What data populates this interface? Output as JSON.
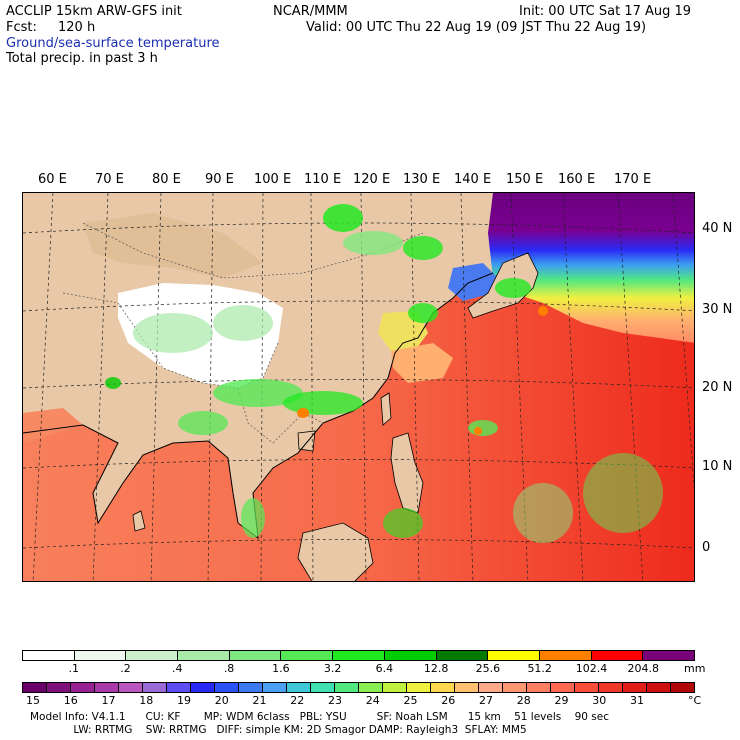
{
  "header": {
    "model": "ACCLIP 15km ARW-GFS init",
    "org": "NCAR/MMM",
    "init": "Init: 00 UTC Sat 17 Aug 19",
    "fcst_label": "Fcst:",
    "fcst_value": "120 h",
    "valid": "Valid: 00 UTC Thu 22 Aug 19 (09 JST Thu 22 Aug 19)",
    "field1": "Ground/sea-surface temperature",
    "field2": "Total precip. in past 3 h"
  },
  "map": {
    "lon_labels": [
      "60 E",
      "70 E",
      "80 E",
      "90 E",
      "100 E",
      "110 E",
      "120 E",
      "130 E",
      "140 E",
      "150 E",
      "160 E",
      "170 E"
    ],
    "lat_labels": [
      "40 N",
      "30 N",
      "20 N",
      "10 N",
      "0"
    ]
  },
  "precip_scale": {
    "labels": [
      ".1",
      ".2",
      ".4",
      ".8",
      "1.6",
      "3.2",
      "6.4",
      "12.8",
      "25.6",
      "51.2",
      "102.4",
      "204.8"
    ],
    "unit": "mm",
    "colors": [
      "#ffffff",
      "#eef8ee",
      "#ccf0cc",
      "#a8eaa8",
      "#80e880",
      "#56e856",
      "#22e822",
      "#00cc00",
      "#007a00",
      "#ffff00",
      "#ff8000",
      "#ff0000",
      "#7a007a"
    ]
  },
  "sst_scale": {
    "labels": [
      "15",
      "16",
      "17",
      "18",
      "19",
      "20",
      "21",
      "22",
      "23",
      "24",
      "25",
      "26",
      "27",
      "28",
      "29",
      "30",
      "31"
    ],
    "unit": "°C",
    "colors": [
      "#6a006a",
      "#80107a",
      "#962294",
      "#aa3aaa",
      "#bb55c0",
      "#9a6ad8",
      "#5c4ef0",
      "#2a2af5",
      "#2a52f5",
      "#3c7af2",
      "#4aa0f2",
      "#40c8d8",
      "#40e0b0",
      "#52e880",
      "#88ee52",
      "#c0f040",
      "#f0f040",
      "#ffd850",
      "#ffc070",
      "#ffaa88",
      "#ff9870",
      "#ff8060",
      "#ff6a50",
      "#f85038",
      "#f03828",
      "#e02018",
      "#cc1010",
      "#b00808"
    ]
  },
  "footer": {
    "line1": "Model Info: V4.1.1      CU: KF       MP: WDM 6class   PBL: YSU         SF: Noah LSM      15 km    51 levels    90 sec",
    "line2": "             LW: RRTMG    SW: RRTMG   DIFF: simple KM: 2D Smagor DAMP: Rayleigh3  SFLAY: MM5"
  }
}
